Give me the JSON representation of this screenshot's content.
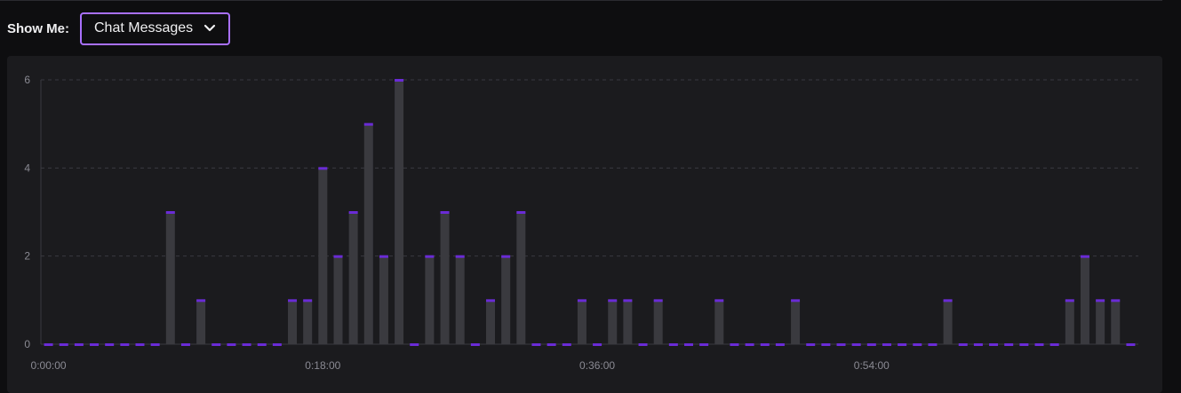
{
  "controls": {
    "show_me_label": "Show Me:",
    "selected_metric": "Chat Messages"
  },
  "icons": {
    "dropdown": "chevron-down-icon"
  },
  "colors": {
    "accent": "#a970ff",
    "bar": "#3a3a3f",
    "bar_cap": "#6a2bd6",
    "grid": "#3a3a40"
  },
  "chart_data": {
    "type": "bar",
    "title": "",
    "xlabel": "",
    "ylabel": "",
    "ylim": [
      0,
      6
    ],
    "y_ticks": [
      "0",
      "2",
      "4",
      "6"
    ],
    "x_tick_labels": [
      "0:00:00",
      "0:18:00",
      "0:36:00",
      "0:54:00"
    ],
    "x_tick_indices": [
      0,
      18,
      36,
      54
    ],
    "bin_minutes": 1,
    "grid": true,
    "values": [
      0,
      0,
      0,
      0,
      0,
      0,
      0,
      0,
      3,
      0,
      1,
      0,
      0,
      0,
      0,
      0,
      1,
      1,
      4,
      2,
      3,
      5,
      2,
      6,
      0,
      2,
      3,
      2,
      0,
      1,
      2,
      3,
      0,
      0,
      0,
      1,
      0,
      1,
      1,
      0,
      1,
      0,
      0,
      0,
      1,
      0,
      0,
      0,
      0,
      1,
      0,
      0,
      0,
      0,
      0,
      0,
      0,
      0,
      0,
      1,
      0,
      0,
      0,
      0,
      0,
      0,
      0,
      1,
      2,
      1,
      1,
      0
    ]
  }
}
